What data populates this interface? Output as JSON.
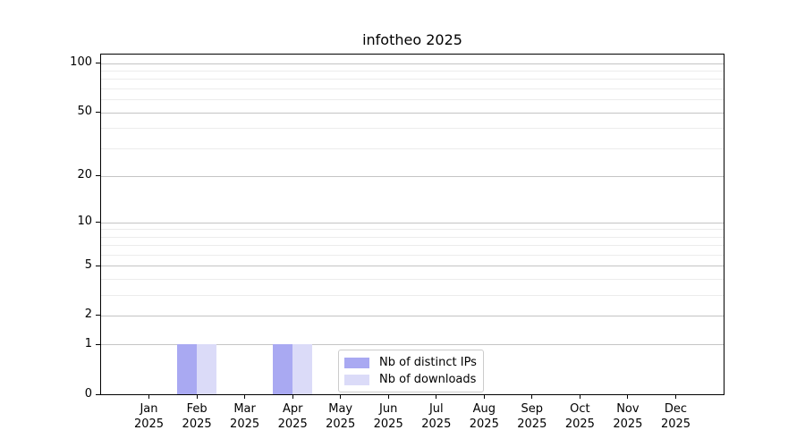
{
  "chart_data": {
    "type": "bar",
    "title": "infotheo 2025",
    "categories": [
      "Jan 2025",
      "Feb 2025",
      "Mar 2025",
      "Apr 2025",
      "May 2025",
      "Jun 2025",
      "Jul 2025",
      "Aug 2025",
      "Sep 2025",
      "Oct 2025",
      "Nov 2025",
      "Dec 2025"
    ],
    "series": [
      {
        "name": "Nb of distinct IPs",
        "color": "#a9a9f2",
        "values": [
          0,
          1,
          0,
          1,
          0,
          0,
          0,
          0,
          0,
          0,
          0,
          0
        ]
      },
      {
        "name": "Nb of downloads",
        "color": "#dbdbf8",
        "values": [
          0,
          1,
          0,
          1,
          0,
          0,
          0,
          0,
          0,
          0,
          0,
          0
        ]
      }
    ],
    "xlabel": "",
    "ylabel": "",
    "yscale": "log1p",
    "ylim": [
      0,
      113
    ],
    "yticks": [
      0,
      1,
      2,
      5,
      10,
      20,
      50,
      100
    ],
    "minor_gridlines": [
      3,
      4,
      6,
      7,
      8,
      9,
      30,
      40,
      60,
      70,
      80,
      90
    ],
    "grid": "horizontal",
    "legend_position": "inside-bottom-center",
    "colors": {
      "background": "#ffffff",
      "axis": "#000000",
      "major_grid": "#c4c4c4",
      "minor_grid": "#ececec",
      "legend_border": "#cccccc",
      "text": "#000000"
    }
  }
}
